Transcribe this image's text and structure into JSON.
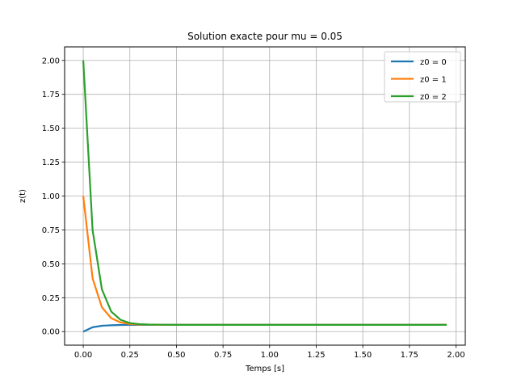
{
  "chart_data": {
    "type": "line",
    "title": "Solution exacte pour mu = 0.05",
    "xlabel": "Temps [s]",
    "ylabel": "z(t)",
    "xlim": [
      -0.1,
      2.05
    ],
    "ylim": [
      -0.1,
      2.1
    ],
    "xticks": [
      0.0,
      0.25,
      0.5,
      0.75,
      1.0,
      1.25,
      1.5,
      1.75,
      2.0
    ],
    "xtick_labels": [
      "0.00",
      "0.25",
      "0.50",
      "0.75",
      "1.00",
      "1.25",
      "1.50",
      "1.75",
      "2.00"
    ],
    "yticks": [
      0.0,
      0.25,
      0.5,
      0.75,
      1.0,
      1.25,
      1.5,
      1.75,
      2.0
    ],
    "ytick_labels": [
      "0.00",
      "0.25",
      "0.50",
      "0.75",
      "1.00",
      "1.25",
      "1.50",
      "1.75",
      "2.00"
    ],
    "grid": true,
    "legend_position": "top-right",
    "x": [
      0.0,
      0.05,
      0.1,
      0.15,
      0.2,
      0.25,
      0.3,
      0.35,
      0.4,
      0.5,
      0.75,
      1.0,
      1.25,
      1.5,
      1.75,
      1.95
    ],
    "series": [
      {
        "name": "z0 = 0",
        "color": "#1f77b4",
        "values": [
          0.0,
          0.032,
          0.043,
          0.047,
          0.049,
          0.0497,
          0.0499,
          0.05,
          0.05,
          0.05,
          0.05,
          0.05,
          0.05,
          0.05,
          0.05,
          0.05
        ]
      },
      {
        "name": "z0 = 1",
        "color": "#ff7f0e",
        "values": [
          1.0,
          0.393,
          0.179,
          0.099,
          0.068,
          0.056,
          0.052,
          0.051,
          0.05,
          0.05,
          0.05,
          0.05,
          0.05,
          0.05,
          0.05,
          0.05
        ]
      },
      {
        "name": "z0 = 2",
        "color": "#2ca02c",
        "values": [
          2.0,
          0.75,
          0.312,
          0.148,
          0.087,
          0.063,
          0.055,
          0.052,
          0.051,
          0.05,
          0.05,
          0.05,
          0.05,
          0.05,
          0.05,
          0.05
        ]
      }
    ]
  }
}
